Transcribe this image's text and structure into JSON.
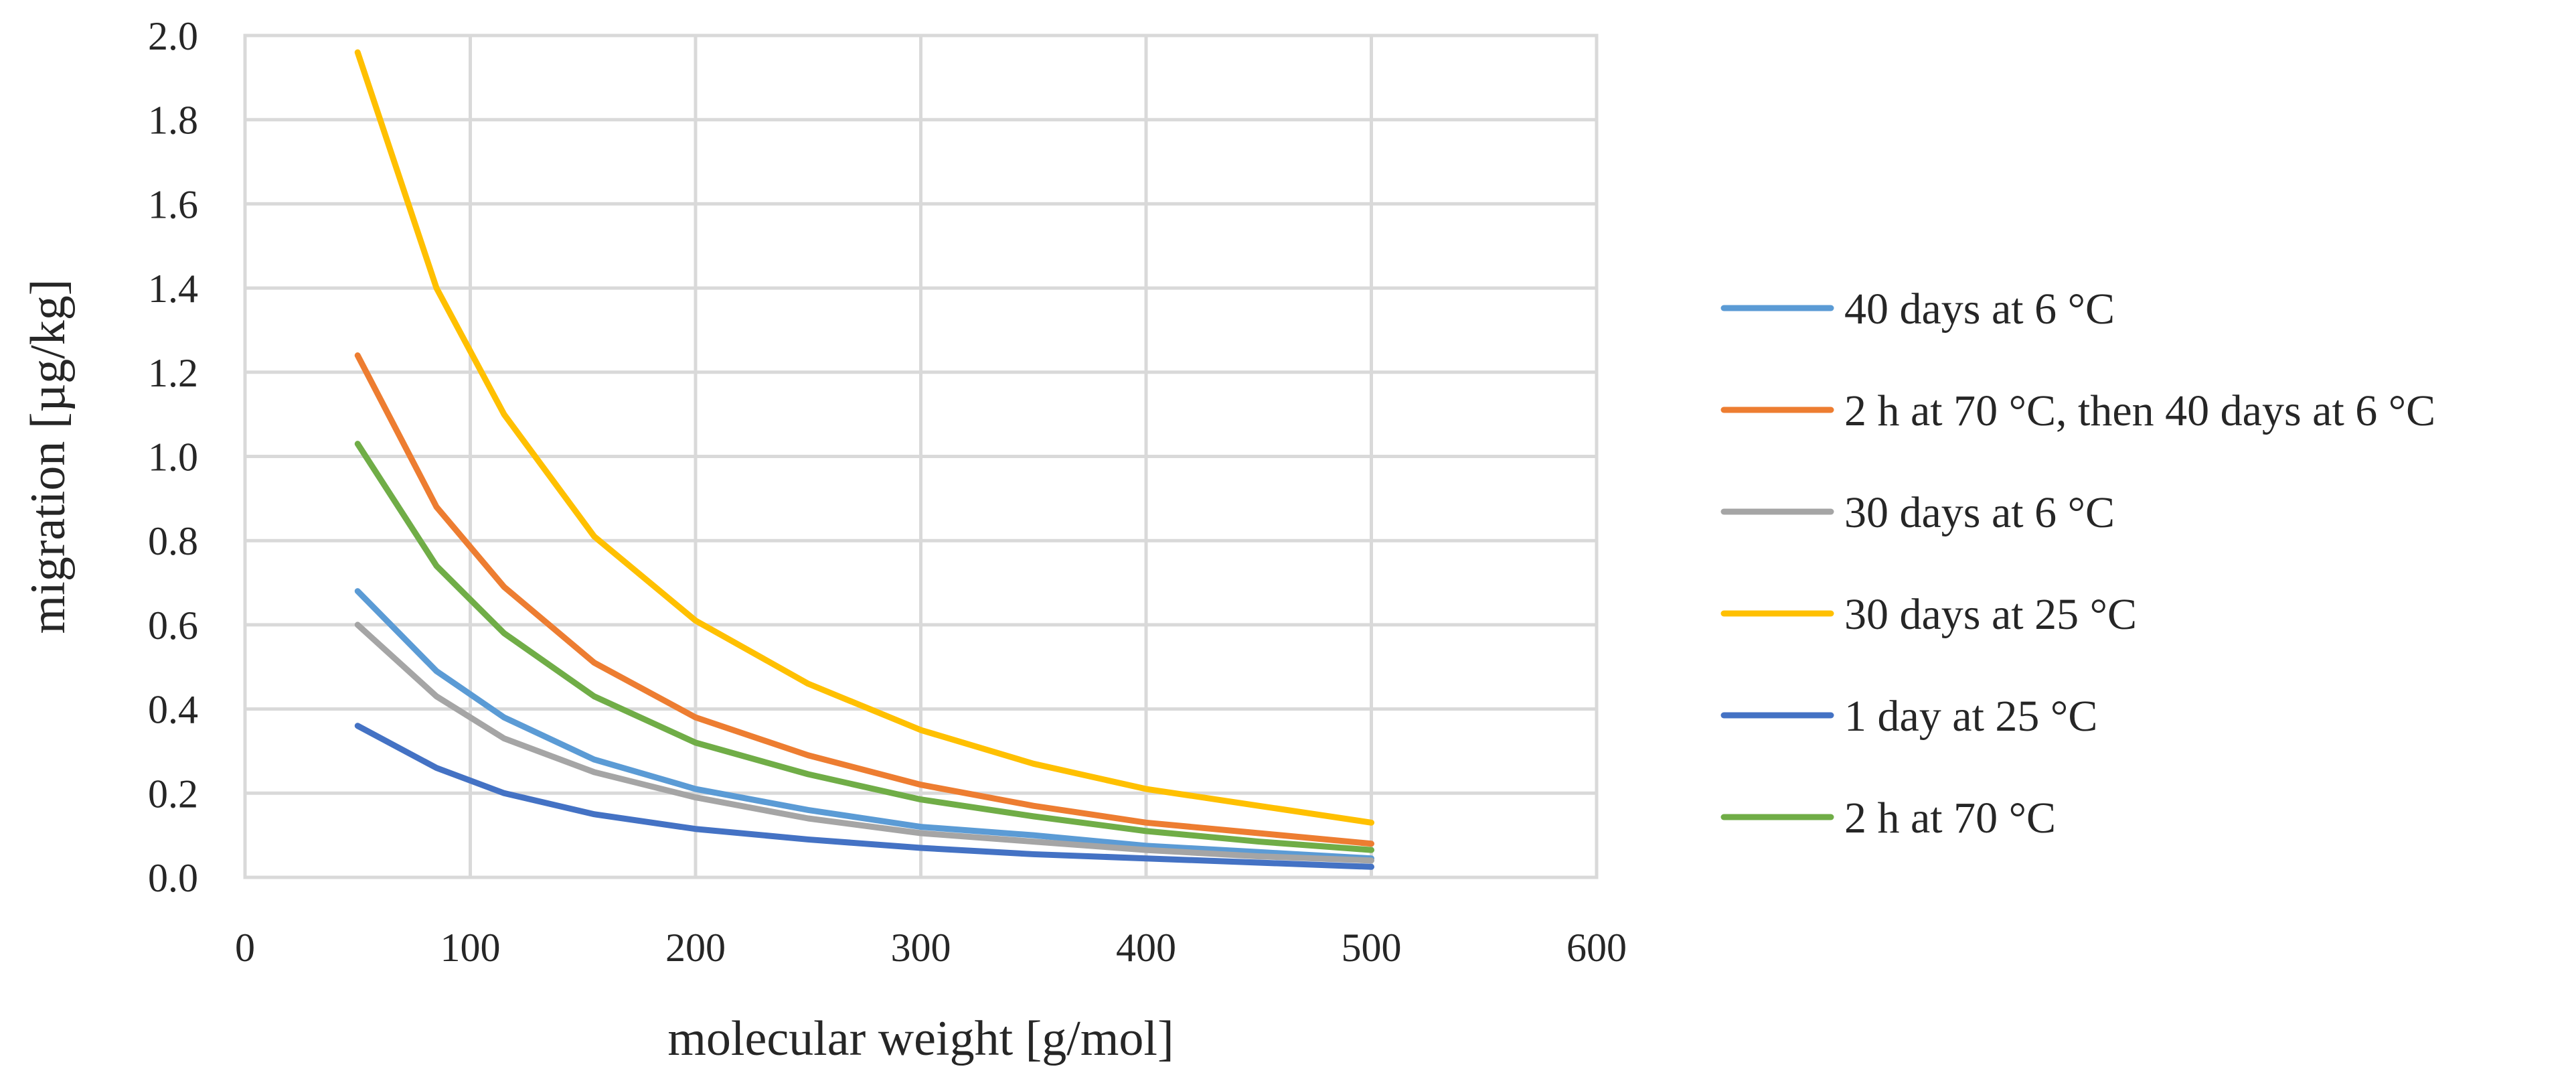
{
  "chart_data": {
    "type": "line",
    "title": "",
    "xlabel": "molecular weight [g/mol]",
    "ylabel": "migration [µg/kg]",
    "xlim": [
      0,
      600
    ],
    "ylim": [
      0,
      2.0
    ],
    "xticks": [
      0,
      100,
      200,
      300,
      400,
      500,
      600
    ],
    "yticks": [
      0.0,
      0.2,
      0.4,
      0.6,
      0.8,
      1.0,
      1.2,
      1.4,
      1.6,
      1.8,
      2.0
    ],
    "xtick_labels": [
      "0",
      "100",
      "200",
      "300",
      "400",
      "500",
      "600"
    ],
    "ytick_labels": [
      "0.0",
      "0.2",
      "0.4",
      "0.6",
      "0.8",
      "1.0",
      "1.2",
      "1.4",
      "1.6",
      "1.8",
      "2.0"
    ],
    "grid": true,
    "legend_position": "right",
    "x": [
      50,
      85,
      115,
      155,
      200,
      250,
      300,
      350,
      400,
      450,
      500
    ],
    "series": [
      {
        "name": "40 days at 6 °C",
        "color": "#5b9bd5",
        "values": [
          0.68,
          0.49,
          0.38,
          0.28,
          0.21,
          0.16,
          0.12,
          0.1,
          0.075,
          0.06,
          0.045
        ]
      },
      {
        "name": "2 h at 70 °C, then 40 days at 6 °C",
        "color": "#ed7d31",
        "values": [
          1.24,
          0.88,
          0.69,
          0.51,
          0.38,
          0.29,
          0.22,
          0.17,
          0.13,
          0.105,
          0.08
        ]
      },
      {
        "name": "30 days at 6 °C",
        "color": "#a5a5a5",
        "values": [
          0.6,
          0.43,
          0.33,
          0.25,
          0.19,
          0.14,
          0.105,
          0.085,
          0.065,
          0.05,
          0.04
        ]
      },
      {
        "name": "30 days at 25 °C",
        "color": "#ffc000",
        "values": [
          1.96,
          1.4,
          1.1,
          0.81,
          0.61,
          0.46,
          0.35,
          0.27,
          0.21,
          0.17,
          0.13
        ]
      },
      {
        "name": "1 day at 25 °C",
        "color": "#4472c4",
        "values": [
          0.36,
          0.26,
          0.2,
          0.15,
          0.115,
          0.09,
          0.07,
          0.055,
          0.045,
          0.035,
          0.025
        ]
      },
      {
        "name": "2 h at 70 °C",
        "color": "#70ad47",
        "values": [
          1.03,
          0.74,
          0.58,
          0.43,
          0.32,
          0.245,
          0.185,
          0.145,
          0.11,
          0.085,
          0.065
        ]
      }
    ]
  }
}
